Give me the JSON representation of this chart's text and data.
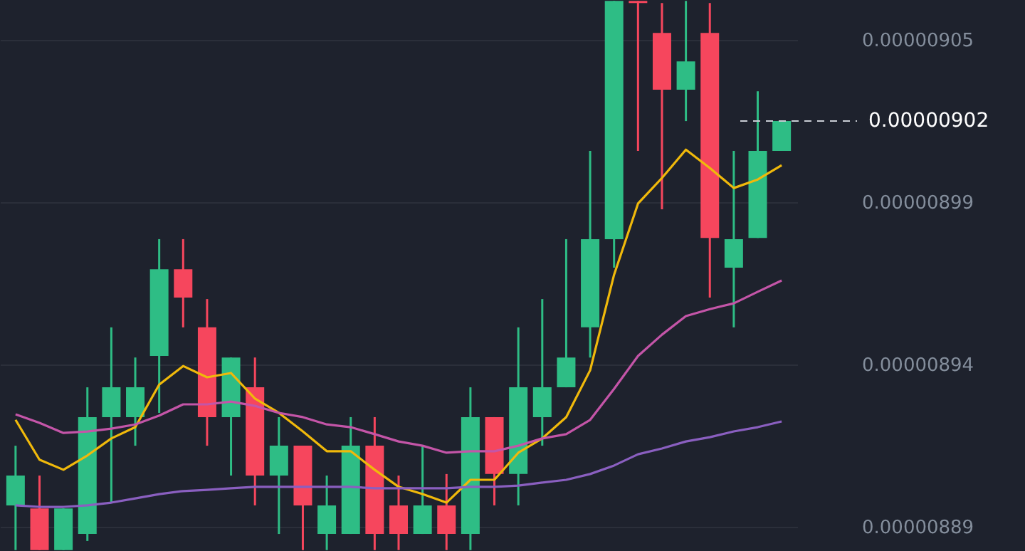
{
  "chart_data": {
    "type": "candlestick",
    "categories": [
      null,
      null,
      null,
      null,
      null,
      null,
      null,
      null,
      null,
      null,
      null,
      null,
      null,
      null,
      null,
      null,
      null,
      null,
      null,
      null,
      null,
      null,
      null,
      null,
      null,
      null,
      null,
      null,
      null,
      null,
      null,
      null,
      null
    ],
    "ohlc": [
      [
        8.8937e-06,
        8.9133e-06,
        8.879e-06,
        8.9035e-06
      ],
      [
        8.8927e-06,
        8.9035e-06,
        8.879e-06,
        8.879e-06
      ],
      [
        8.879e-06,
        8.8927e-06,
        8.879e-06,
        8.8927e-06
      ],
      [
        8.8843e-06,
        8.9325e-06,
        8.882e-06,
        8.9227e-06
      ],
      [
        8.9227e-06,
        8.9522e-06,
        8.8946e-06,
        8.9325e-06
      ],
      [
        8.9227e-06,
        8.9423e-06,
        8.9133e-06,
        8.9325e-06
      ],
      [
        8.9428e-06,
        8.9812e-06,
        8.9241e-06,
        8.9713e-06
      ],
      [
        8.9713e-06,
        8.9812e-06,
        8.9522e-06,
        8.962e-06
      ],
      [
        8.9522e-06,
        8.9615e-06,
        8.9133e-06,
        8.9227e-06
      ],
      [
        8.9227e-06,
        8.9423e-06,
        8.9035e-06,
        8.9423e-06
      ],
      [
        8.9325e-06,
        8.9423e-06,
        8.8937e-06,
        8.9035e-06
      ],
      [
        8.9035e-06,
        8.9227e-06,
        8.8843e-06,
        8.9133e-06
      ],
      [
        8.9133e-06,
        8.9133e-06,
        8.879e-06,
        8.8937e-06
      ],
      [
        8.8843e-06,
        8.9035e-06,
        8.879e-06,
        8.8937e-06
      ],
      [
        8.8843e-06,
        8.9227e-06,
        8.8843e-06,
        8.9133e-06
      ],
      [
        8.9133e-06,
        8.9227e-06,
        8.879e-06,
        8.8843e-06
      ],
      [
        8.8937e-06,
        8.9035e-06,
        8.879e-06,
        8.8843e-06
      ],
      [
        8.8843e-06,
        8.9133e-06,
        8.8843e-06,
        8.8937e-06
      ],
      [
        8.8937e-06,
        8.904e-06,
        8.879e-06,
        8.8843e-06
      ],
      [
        8.8843e-06,
        8.9325e-06,
        8.879e-06,
        8.9227e-06
      ],
      [
        8.9227e-06,
        8.9227e-06,
        8.8937e-06,
        8.904e-06
      ],
      [
        8.904e-06,
        8.9522e-06,
        8.8937e-06,
        8.9325e-06
      ],
      [
        8.9227e-06,
        8.9615e-06,
        8.9133e-06,
        8.9325e-06
      ],
      [
        8.9325e-06,
        8.9812e-06,
        8.9325e-06,
        8.9423e-06
      ],
      [
        8.9522e-06,
        9.0102e-06,
        8.9423e-06,
        8.9812e-06
      ],
      [
        8.9812e-06,
        9.0595e-06,
        8.9718e-06,
        9.0595e-06
      ],
      [
        9.0595e-06,
        9.0595e-06,
        9.0102e-06,
        9.0588e-06
      ],
      [
        9.049e-06,
        9.0588e-06,
        8.991e-06,
        9.0303e-06
      ],
      [
        9.0303e-06,
        9.0595e-06,
        9.02e-06,
        9.0396e-06
      ],
      [
        9.049e-06,
        9.0588e-06,
        8.962e-06,
        8.9816e-06
      ],
      [
        8.9718e-06,
        9.0102e-06,
        8.9522e-06,
        8.9812e-06
      ],
      [
        8.9816e-06,
        9.0298e-06,
        8.9816e-06,
        9.0102e-06
      ],
      [
        9.0102e-06,
        9.02e-06,
        9.0102e-06,
        9.02e-06
      ]
    ],
    "colors": [
      "#2ebd85",
      "#f6465d",
      "#2ebd85",
      "#2ebd85",
      "#2ebd85",
      "#2ebd85",
      "#2ebd85",
      "#f6465d",
      "#f6465d",
      "#2ebd85",
      "#f6465d",
      "#2ebd85",
      "#f6465d",
      "#2ebd85",
      "#2ebd85",
      "#f6465d",
      "#f6465d",
      "#2ebd85",
      "#f6465d",
      "#2ebd85",
      "#f6465d",
      "#2ebd85",
      "#2ebd85",
      "#2ebd85",
      "#2ebd85",
      "#2ebd85",
      "#f6465d",
      "#f6465d",
      "#2ebd85",
      "#f6465d",
      "#2ebd85",
      "#2ebd85",
      "#2ebd85"
    ],
    "series": [
      {
        "type": "line",
        "color": "#f0b90b",
        "values": [
          8.9218e-06,
          8.9087e-06,
          8.9054e-06,
          8.9101e-06,
          8.9157e-06,
          8.9194e-06,
          8.9334e-06,
          8.9395e-06,
          8.9358e-06,
          8.9372e-06,
          8.9288e-06,
          8.9241e-06,
          8.918e-06,
          8.9115e-06,
          8.9115e-06,
          8.9054e-06,
          8.8998e-06,
          8.8974e-06,
          8.8946e-06,
          8.9021e-06,
          8.9021e-06,
          8.911e-06,
          8.9157e-06,
          8.9227e-06,
          8.9381e-06,
          8.9695e-06,
          8.9929e-06,
          9.0013e-06,
          9.0106e-06,
          9.0046e-06,
          8.998e-06,
          9.0008e-06,
          9.0055e-06
        ]
      },
      {
        "type": "line",
        "color": "#c455a8",
        "values": [
          8.9236e-06,
          8.9208e-06,
          8.9175e-06,
          8.918e-06,
          8.9189e-06,
          8.9203e-06,
          8.9232e-06,
          8.9269e-06,
          8.9269e-06,
          8.9278e-06,
          8.9264e-06,
          8.9241e-06,
          8.9227e-06,
          8.9203e-06,
          8.9194e-06,
          8.9171e-06,
          8.9147e-06,
          8.9133e-06,
          8.911e-06,
          8.9115e-06,
          8.9115e-06,
          8.9133e-06,
          8.9157e-06,
          8.9171e-06,
          8.9218e-06,
          8.932e-06,
          8.9428e-06,
          8.9498e-06,
          8.9559e-06,
          8.9582e-06,
          8.9601e-06,
          8.9639e-06,
          8.9676e-06
        ]
      },
      {
        "type": "line",
        "color": "#8a5fc0",
        "values": [
          8.8937e-06,
          8.8932e-06,
          8.8932e-06,
          8.8937e-06,
          8.8946e-06,
          8.896e-06,
          8.8974e-06,
          8.8984e-06,
          8.8988e-06,
          8.8993e-06,
          8.8998e-06,
          8.8998e-06,
          8.8998e-06,
          8.8998e-06,
          8.8998e-06,
          8.8993e-06,
          8.8993e-06,
          8.8993e-06,
          8.8993e-06,
          8.8998e-06,
          8.8998e-06,
          8.9002e-06,
          8.9012e-06,
          8.9021e-06,
          8.904e-06,
          8.9068e-06,
          8.9105e-06,
          8.9124e-06,
          8.9147e-06,
          8.9161e-06,
          8.918e-06,
          8.9194e-06,
          8.9213e-06
        ]
      }
    ],
    "ylim": [
      8.8787e-06,
      9.0598e-06
    ],
    "yticks": [
      {
        "value": 9.0467e-06,
        "label": "0.00000905"
      },
      {
        "value": 8.9933e-06,
        "label": "0.00000899"
      },
      {
        "value": 8.94e-06,
        "label": "0.00000894"
      },
      {
        "value": 8.8867e-06,
        "label": "0.00000889"
      }
    ],
    "ref_lines": [
      {
        "axis": "y",
        "value": 9.02e-06,
        "label": "0.00000902",
        "color": "#c8ccd4",
        "line_style": "dashed"
      }
    ],
    "grid": "y"
  }
}
